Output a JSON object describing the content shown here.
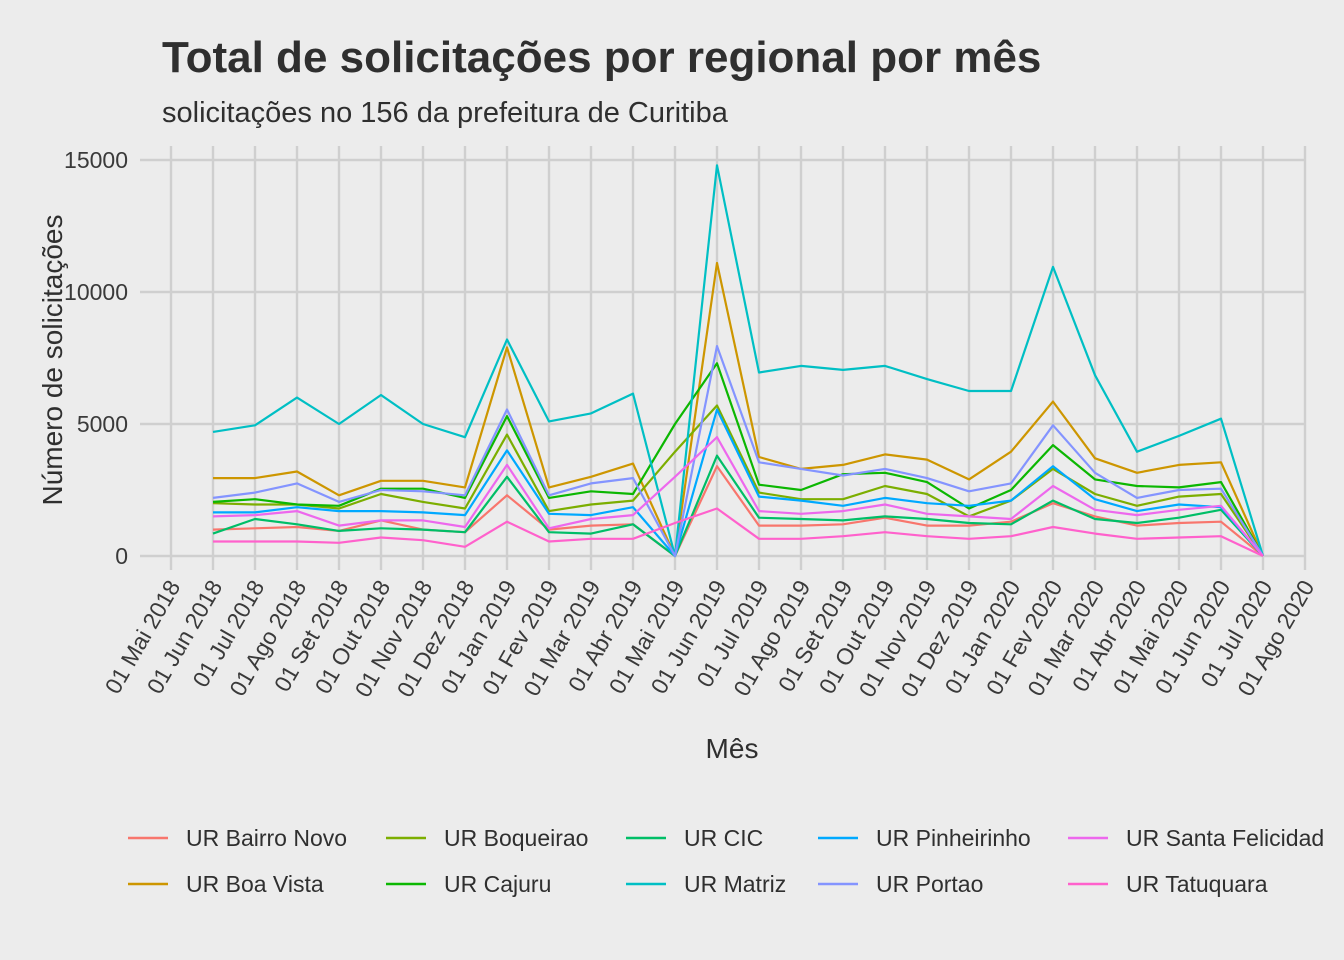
{
  "chart_data": {
    "type": "line",
    "title": "Total de solicitações por regional por mês",
    "subtitle": "solicitações no 156 da prefeitura de Curitiba",
    "xlabel": "Mês",
    "ylabel": "Número de solicitações",
    "ylim": [
      0,
      15000
    ],
    "y_ticks": [
      0,
      5000,
      10000,
      15000
    ],
    "x_ticks": [
      "01 Mai 2018",
      "01 Jun 2018",
      "01 Jul 2018",
      "01 Ago 2018",
      "01 Set 2018",
      "01 Out 2018",
      "01 Nov 2018",
      "01 Dez 2018",
      "01 Jan 2019",
      "01 Fev 2019",
      "01 Mar 2019",
      "01 Abr 2019",
      "01 Mai 2019",
      "01 Jun 2019",
      "01 Jul 2019",
      "01 Ago 2019",
      "01 Set 2019",
      "01 Out 2019",
      "01 Nov 2019",
      "01 Dez 2019",
      "01 Jan 2020",
      "01 Fev 2020",
      "01 Mar 2020",
      "01 Abr 2020",
      "01 Mai 2020",
      "01 Jun 2020",
      "01 Jul 2020",
      "01 Ago 2020"
    ],
    "x": [
      "2018-06-01",
      "2018-07-01",
      "2018-08-01",
      "2018-09-01",
      "2018-10-01",
      "2018-11-01",
      "2018-12-01",
      "2019-01-01",
      "2019-02-01",
      "2019-03-01",
      "2019-04-01",
      "2019-05-01",
      "2019-06-01",
      "2019-07-01",
      "2019-08-01",
      "2019-09-01",
      "2019-10-01",
      "2019-11-01",
      "2019-12-01",
      "2020-01-01",
      "2020-02-01",
      "2020-03-01",
      "2020-04-01",
      "2020-05-01",
      "2020-06-01",
      "2020-07-01"
    ],
    "grid": true,
    "legend_position": "bottom",
    "series": [
      {
        "name": "UR Bairro Novo",
        "color": "#F8766D",
        "values": [
          1000,
          1050,
          1100,
          950,
          1350,
          1000,
          900,
          2300,
          1000,
          1150,
          1200,
          0,
          3400,
          1150,
          1150,
          1200,
          1450,
          1150,
          1150,
          1300,
          2000,
          1500,
          1150,
          1250,
          1300,
          0
        ]
      },
      {
        "name": "UR Boa Vista",
        "color": "#CD9600",
        "values": [
          2950,
          2950,
          3200,
          2300,
          2850,
          2850,
          2600,
          7900,
          2600,
          3000,
          3500,
          0,
          11100,
          3750,
          3300,
          3450,
          3850,
          3650,
          2900,
          3950,
          5850,
          3700,
          3150,
          3450,
          3550,
          0
        ]
      },
      {
        "name": "UR Boqueirao",
        "color": "#7CAE00",
        "values": [
          2000,
          1950,
          1950,
          1800,
          2350,
          2050,
          1800,
          4600,
          1700,
          1950,
          2100,
          3950,
          5700,
          2400,
          2150,
          2150,
          2650,
          2350,
          1500,
          2100,
          3300,
          2350,
          1900,
          2250,
          2350,
          0
        ]
      },
      {
        "name": "UR Cajuru",
        "color": "#0CB702",
        "values": [
          2050,
          2150,
          1950,
          1900,
          2550,
          2550,
          2200,
          5300,
          2200,
          2450,
          2350,
          5000,
          7300,
          2700,
          2500,
          3100,
          3150,
          2800,
          1800,
          2500,
          4200,
          2900,
          2650,
          2600,
          2800,
          0
        ]
      },
      {
        "name": "UR CIC",
        "color": "#00BE67",
        "values": [
          850,
          1400,
          1200,
          950,
          1050,
          1000,
          900,
          3000,
          900,
          850,
          1200,
          0,
          3800,
          1450,
          1400,
          1350,
          1500,
          1400,
          1250,
          1200,
          2100,
          1400,
          1250,
          1450,
          1750,
          0
        ]
      },
      {
        "name": "UR Matriz",
        "color": "#00BFC4",
        "values": [
          4700,
          4950,
          6000,
          5000,
          6100,
          5000,
          4500,
          8200,
          5100,
          5400,
          6150,
          0,
          14800,
          6950,
          7200,
          7050,
          7200,
          6700,
          6250,
          6250,
          10950,
          6850,
          3950,
          4550,
          5200,
          0
        ]
      },
      {
        "name": "UR Pinheirinho",
        "color": "#00A9FF",
        "values": [
          1650,
          1650,
          1850,
          1700,
          1700,
          1650,
          1550,
          4000,
          1600,
          1550,
          1850,
          0,
          5550,
          2250,
          2100,
          1900,
          2200,
          2000,
          1900,
          2100,
          3400,
          2150,
          1700,
          1950,
          1850,
          0
        ]
      },
      {
        "name": "UR Portao",
        "color": "#8494FF",
        "values": [
          2200,
          2400,
          2750,
          2050,
          2500,
          2450,
          2300,
          5550,
          2300,
          2750,
          2950,
          0,
          7950,
          3550,
          3300,
          3050,
          3300,
          2950,
          2450,
          2750,
          4950,
          3150,
          2200,
          2500,
          2550,
          0
        ]
      },
      {
        "name": "UR Santa Felicidad",
        "color": "#ED68ED",
        "values": [
          1500,
          1550,
          1700,
          1150,
          1350,
          1350,
          1100,
          3450,
          1050,
          1400,
          1550,
          3000,
          4500,
          1700,
          1600,
          1700,
          1950,
          1600,
          1500,
          1400,
          2650,
          1750,
          1550,
          1750,
          1900,
          0
        ]
      },
      {
        "name": "UR Tatuquara",
        "color": "#FF61CC",
        "values": [
          550,
          550,
          550,
          500,
          700,
          600,
          350,
          1300,
          550,
          650,
          650,
          1250,
          1800,
          650,
          650,
          750,
          900,
          750,
          650,
          750,
          1100,
          850,
          650,
          700,
          750,
          0
        ]
      }
    ]
  }
}
